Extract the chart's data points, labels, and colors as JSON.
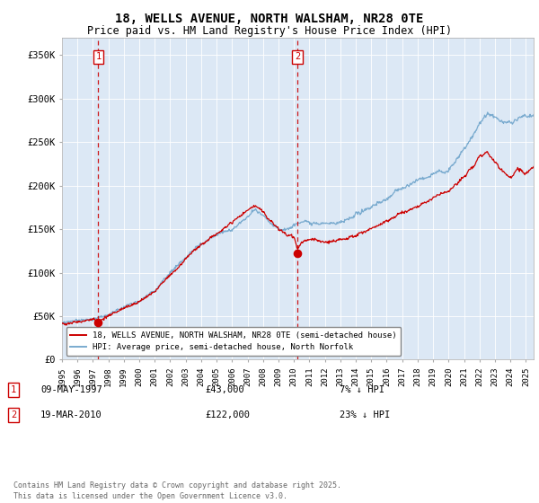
{
  "title": "18, WELLS AVENUE, NORTH WALSHAM, NR28 0TE",
  "subtitle": "Price paid vs. HM Land Registry's House Price Index (HPI)",
  "ylabel_values": [
    "£0",
    "£50K",
    "£100K",
    "£150K",
    "£200K",
    "£250K",
    "£300K",
    "£350K"
  ],
  "ylim": [
    0,
    370000
  ],
  "yticks": [
    0,
    50000,
    100000,
    150000,
    200000,
    250000,
    300000,
    350000
  ],
  "legend_line1": "18, WELLS AVENUE, NORTH WALSHAM, NR28 0TE (semi-detached house)",
  "legend_line2": "HPI: Average price, semi-detached house, North Norfolk",
  "sale1_date": "09-MAY-1997",
  "sale1_price": "£43,000",
  "sale1_pct": "7% ↓ HPI",
  "sale1_x": 1997.35,
  "sale1_y": 43000,
  "sale2_date": "19-MAR-2010",
  "sale2_price": "£122,000",
  "sale2_pct": "23% ↓ HPI",
  "sale2_x": 2010.22,
  "sale2_y": 122000,
  "vline1_x": 1997.35,
  "vline2_x": 2010.22,
  "footer": "Contains HM Land Registry data © Crown copyright and database right 2025.\nThis data is licensed under the Open Government Licence v3.0.",
  "bg_color": "#dce8f5",
  "red_line_color": "#cc0000",
  "blue_line_color": "#7aabcf",
  "vline_color": "#cc0000",
  "title_fontsize": 10,
  "subtitle_fontsize": 8.5,
  "xmin": 1995,
  "xmax": 2025.5
}
